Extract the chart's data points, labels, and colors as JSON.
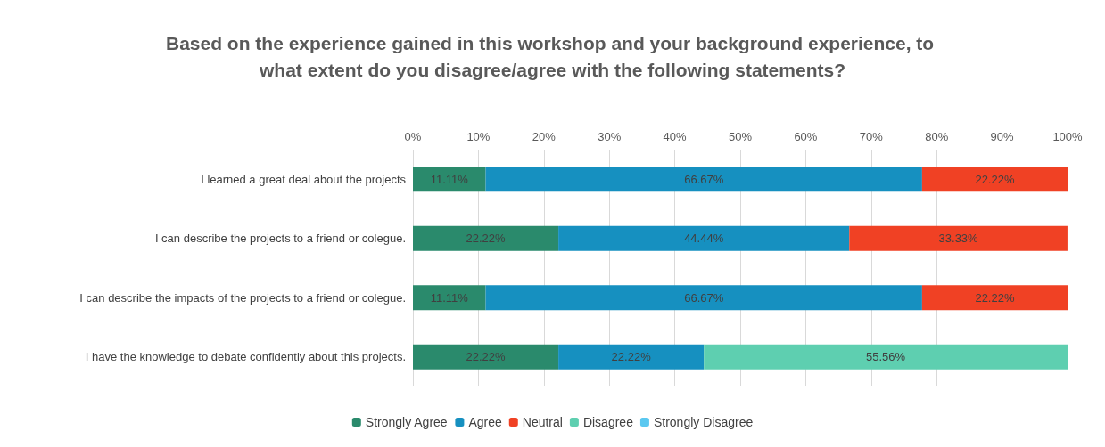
{
  "chart_data": {
    "type": "bar",
    "orientation": "horizontal",
    "stacked": true,
    "title": "Based on the experience gained in this workshop and your background experience, to what extent do you disagree/agree with the following statements?",
    "categories": [
      "I learned a great deal about the projects",
      "I can describe the projects to a friend or colegue.",
      "I can describe the impacts of the projects to a friend or colegue.",
      "I have the knowledge to debate confidently about this projects."
    ],
    "series": [
      {
        "name": "Strongly Agree",
        "color": "#2a8a6c",
        "values": [
          11.11,
          22.22,
          11.11,
          22.22
        ],
        "value_labels": [
          "11.11%",
          "22.22%",
          "11.11%",
          "22.22%"
        ]
      },
      {
        "name": "Agree",
        "color": "#1690c0",
        "values": [
          66.67,
          44.44,
          66.67,
          22.22
        ],
        "value_labels": [
          "66.67%",
          "44.44%",
          "66.67%",
          "22.22%"
        ]
      },
      {
        "name": "Neutral",
        "color": "#f04124",
        "values": [
          22.22,
          33.33,
          22.22,
          null
        ],
        "value_labels": [
          "22.22%",
          "33.33%",
          "22.22%",
          null
        ]
      },
      {
        "name": "Disagree",
        "color": "#5ecfb0",
        "values": [
          null,
          null,
          null,
          55.56
        ],
        "value_labels": [
          null,
          null,
          null,
          "55.56%"
        ]
      },
      {
        "name": "Strongly Disagree",
        "color": "#5bc8f0",
        "values": [
          null,
          null,
          null,
          null
        ],
        "value_labels": [
          null,
          null,
          null,
          null
        ]
      }
    ],
    "xlim": [
      0,
      100
    ],
    "xticks": [
      {
        "value": 0,
        "label": "0%"
      },
      {
        "value": 10,
        "label": "10%"
      },
      {
        "value": 20,
        "label": "20%"
      },
      {
        "value": 30,
        "label": "30%"
      },
      {
        "value": 40,
        "label": "40%"
      },
      {
        "value": 50,
        "label": "50%"
      },
      {
        "value": 60,
        "label": "60%"
      },
      {
        "value": 70,
        "label": "70%"
      },
      {
        "value": 80,
        "label": "80%"
      },
      {
        "value": 90,
        "label": "90%"
      },
      {
        "value": 100,
        "label": "100%"
      }
    ],
    "grid": "x",
    "legend": "bottom"
  }
}
